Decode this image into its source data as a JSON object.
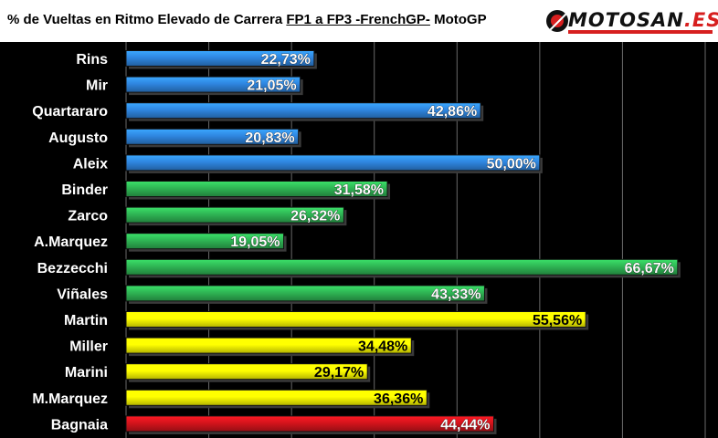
{
  "title": {
    "prefix": "% de Vueltas en Ritmo Elevado de Carrera ",
    "underlined": "FP1 a FP3 -FrenchGP-",
    "suffix": " MotoGP"
  },
  "logo": {
    "text_main": "MOTOSAN",
    "text_accent": ".ES"
  },
  "colors": {
    "blue": "#2f86e0",
    "green": "#2fb554",
    "yellow": "#ffff00",
    "red": "#d4141c",
    "grid": "#6a6a6a",
    "background": "#000000"
  },
  "chart_data": {
    "type": "bar",
    "orientation": "horizontal",
    "title": "% de Vueltas en Ritmo Elevado de Carrera FP1 a FP3 -FrenchGP- MotoGP",
    "xlim": [
      0,
      70
    ],
    "grid": true,
    "categories": [
      "Rins",
      "Mir",
      "Quartararo",
      "Augusto",
      "Aleix",
      "Binder",
      "Zarco",
      "A.Marquez",
      "Bezzecchi",
      "Viñales",
      "Martin",
      "Miller",
      "Marini",
      "M.Marquez",
      "Bagnaia"
    ],
    "values": [
      22.73,
      21.05,
      42.86,
      20.83,
      50.0,
      31.58,
      26.32,
      19.05,
      66.67,
      43.33,
      55.56,
      34.48,
      29.17,
      36.36,
      44.44
    ],
    "labels": [
      "22,73%",
      "21,05%",
      "42,86%",
      "20,83%",
      "50,00%",
      "31,58%",
      "26,32%",
      "19,05%",
      "66,67%",
      "43,33%",
      "55,56%",
      "34,48%",
      "29,17%",
      "36,36%",
      "44,44%"
    ],
    "bar_colors": [
      "blue",
      "blue",
      "blue",
      "blue",
      "blue",
      "green",
      "green",
      "green",
      "green",
      "green",
      "yellow",
      "yellow",
      "yellow",
      "yellow",
      "red"
    ]
  }
}
